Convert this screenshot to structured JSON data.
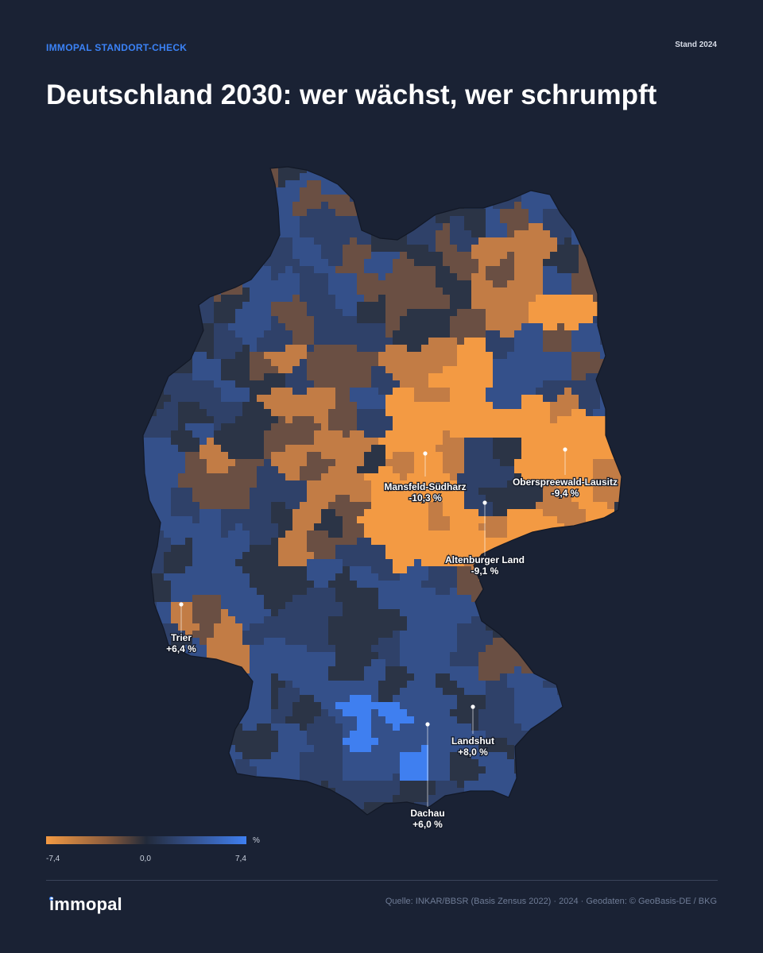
{
  "header": {
    "kicker": "IMMOPAL STANDORT-CHECK",
    "stand": "Stand 2024",
    "title": "Deutschland 2030: wer wächst, wer schrumpft"
  },
  "colors": {
    "background": "#1a2234",
    "accent": "#3b82f6",
    "shrink_strong": "#f39a43",
    "shrink_mid": "#c27c45",
    "shrink_weak": "#6a4f43",
    "neutral": "#2b3446",
    "grow_weak": "#2f4169",
    "grow_mid": "#34508a",
    "grow_strong": "#3f7ff0",
    "border": "#121826"
  },
  "annotations": [
    {
      "name": "Mansfeld-Südharz",
      "value": "-10,3 %"
    },
    {
      "name": "Oberspreewald-Lausitz",
      "value": "-9,4 %"
    },
    {
      "name": "Altenburger Land",
      "value": "-9,1 %"
    },
    {
      "name": "Trier",
      "value": "+6,4 %"
    },
    {
      "name": "Landshut",
      "value": "+8,0 %"
    },
    {
      "name": "Dachau",
      "value": "+6,0 %"
    }
  ],
  "legend": {
    "unit": "%",
    "min_label": "-7,4",
    "mid_label": "0,0",
    "max_label": "7,4"
  },
  "footer": {
    "logo": "immopal",
    "source": "Quelle: INKAR/BBSR (Basis Zensus 2022) · 2024 · Geodaten: © GeoBasis-DE / BKG"
  }
}
